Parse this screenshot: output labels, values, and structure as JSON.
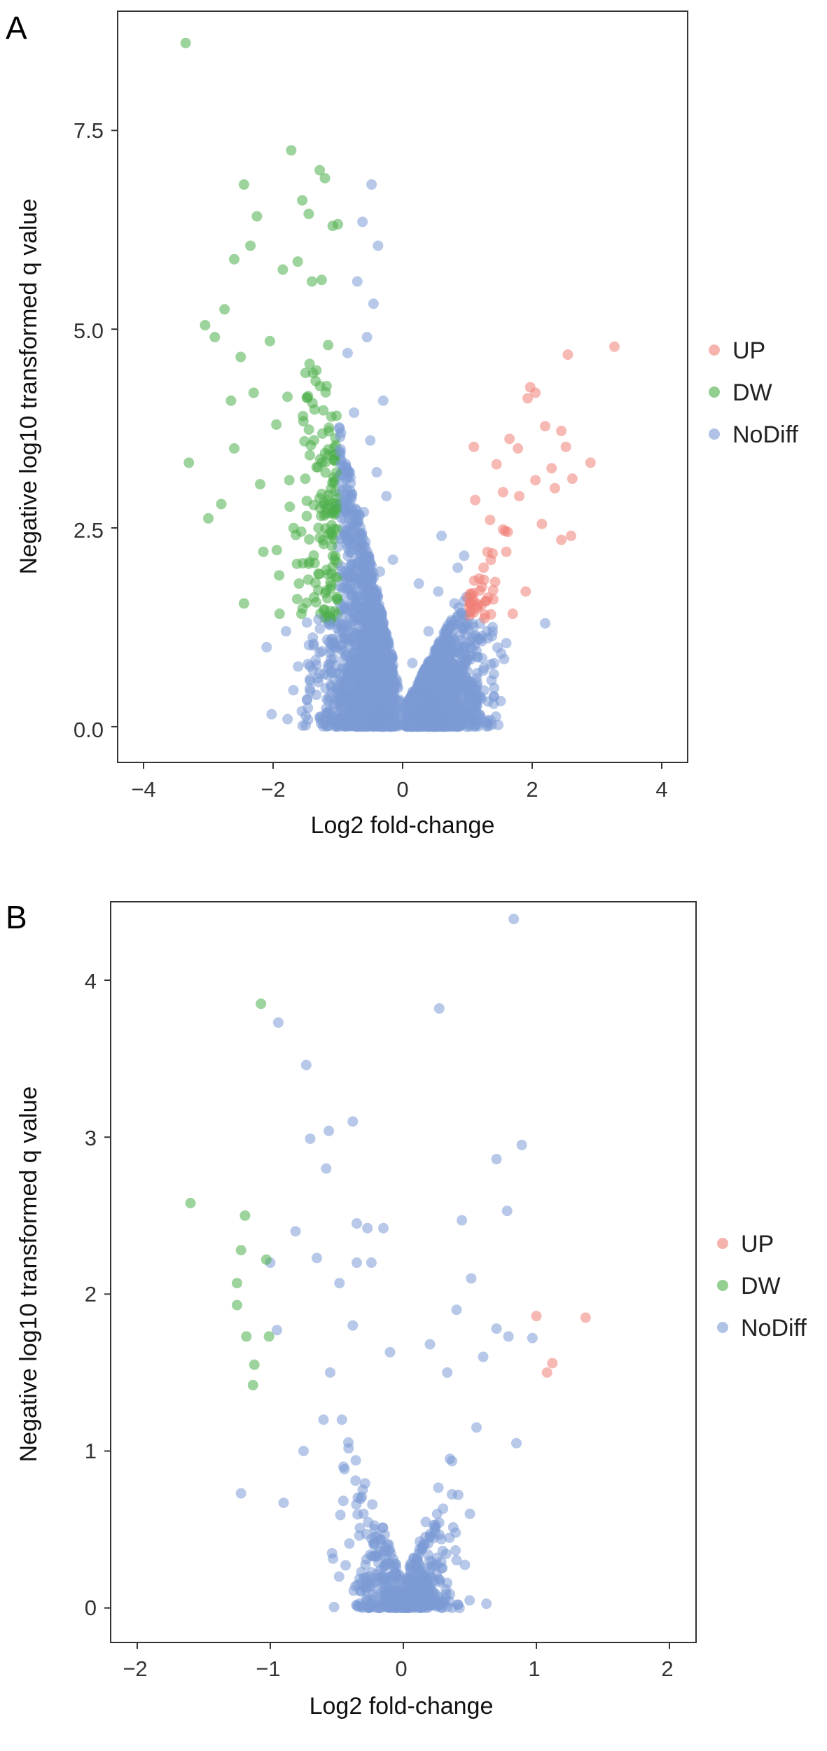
{
  "panels": [
    {
      "letter": "A",
      "xlabel": "Log2 fold-change",
      "ylabel": "Negative log10 transformed q value",
      "xticks": [
        "−4",
        "−2",
        "0",
        "2",
        "4"
      ],
      "yticks": [
        "0.0",
        "2.5",
        "5.0",
        "7.5"
      ],
      "legend": [
        "UP",
        "DW",
        "NoDiff"
      ]
    },
    {
      "letter": "B",
      "xlabel": "Log2 fold-change",
      "ylabel": "Negative log10 transformed q value",
      "xticks": [
        "−2",
        "−1",
        "0",
        "1",
        "2"
      ],
      "yticks": [
        "0",
        "1",
        "2",
        "3",
        "4"
      ],
      "legend": [
        "UP",
        "DW",
        "NoDiff"
      ]
    }
  ],
  "chart_data": [
    {
      "type": "scatter",
      "title": "",
      "xlabel": "Log2 fold-change",
      "ylabel": "Negative log10 transformed q value",
      "xlim": [
        -4.4,
        4.4
      ],
      "ylim": [
        -0.45,
        9.0
      ],
      "xticks": [
        -4,
        -2,
        0,
        2,
        4
      ],
      "yticks": [
        0,
        2.5,
        5.0,
        7.5
      ],
      "grid": false,
      "legend_position": "right",
      "point_opacity": 0.55,
      "series": [
        {
          "name": "UP",
          "color": "#F08077",
          "points": [
            [
              3.27,
              4.78
            ],
            [
              2.55,
              4.68
            ],
            [
              1.97,
              4.27
            ],
            [
              2.05,
              4.2
            ],
            [
              1.93,
              4.13
            ],
            [
              2.2,
              3.78
            ],
            [
              2.45,
              3.72
            ],
            [
              1.65,
              3.62
            ],
            [
              1.1,
              3.52
            ],
            [
              2.9,
              3.32
            ],
            [
              2.52,
              3.52
            ],
            [
              1.78,
              3.5
            ],
            [
              2.62,
              3.12
            ],
            [
              2.3,
              3.25
            ],
            [
              1.45,
              3.3
            ],
            [
              2.35,
              3.0
            ],
            [
              2.6,
              2.4
            ],
            [
              2.45,
              2.35
            ],
            [
              1.12,
              2.85
            ],
            [
              1.35,
              2.6
            ],
            [
              1.8,
              2.9
            ],
            [
              1.6,
              2.2
            ],
            [
              1.25,
              2.0
            ],
            [
              1.4,
              1.6
            ],
            [
              1.9,
              1.7
            ],
            [
              2.15,
              2.55
            ],
            [
              1.55,
              2.95
            ],
            [
              2.05,
              3.1
            ],
            [
              1.05,
              1.45
            ],
            [
              1.7,
              1.42
            ]
          ]
        },
        {
          "name": "DW",
          "color": "#4DAF4A",
          "points": [
            [
              -3.35,
              8.6
            ],
            [
              -1.72,
              7.25
            ],
            [
              -2.45,
              6.82
            ],
            [
              -1.2,
              6.9
            ],
            [
              -1.55,
              6.62
            ],
            [
              -1.28,
              7.0
            ],
            [
              -2.25,
              6.42
            ],
            [
              -1.45,
              6.45
            ],
            [
              -1.0,
              6.32
            ],
            [
              -1.08,
              6.3
            ],
            [
              -2.35,
              6.05
            ],
            [
              -1.62,
              5.85
            ],
            [
              -2.6,
              5.88
            ],
            [
              -1.85,
              5.75
            ],
            [
              -1.4,
              5.6
            ],
            [
              -2.75,
              5.25
            ],
            [
              -1.25,
              5.62
            ],
            [
              -2.9,
              4.9
            ],
            [
              -3.05,
              5.05
            ],
            [
              -2.05,
              4.85
            ],
            [
              -2.5,
              4.65
            ],
            [
              -3.3,
              3.32
            ],
            [
              -3.0,
              2.62
            ],
            [
              -2.6,
              3.5
            ],
            [
              -2.3,
              4.2
            ],
            [
              -1.5,
              4.45
            ],
            [
              -1.15,
              4.8
            ],
            [
              -1.95,
              3.8
            ],
            [
              -2.8,
              2.8
            ],
            [
              -2.15,
              2.2
            ],
            [
              -1.75,
              3.1
            ],
            [
              -1.3,
              2.5
            ],
            [
              -2.45,
              1.55
            ],
            [
              -1.6,
              1.8
            ],
            [
              -1.05,
              1.45
            ],
            [
              -1.9,
              1.42
            ],
            [
              -2.2,
              3.05
            ],
            [
              -1.1,
              3.9
            ],
            [
              -2.65,
              4.1
            ],
            [
              -1.45,
              2.05
            ]
          ]
        },
        {
          "name": "NoDiff",
          "color": "#7B9BD6",
          "points": [
            [
              -0.48,
              6.82
            ],
            [
              -0.38,
              6.05
            ],
            [
              -0.45,
              5.32
            ],
            [
              -0.62,
              6.35
            ],
            [
              -0.7,
              5.6
            ],
            [
              -0.55,
              4.9
            ],
            [
              -0.85,
              4.7
            ],
            [
              -0.3,
              4.1
            ],
            [
              -0.75,
              3.95
            ],
            [
              -0.5,
              3.6
            ],
            [
              -0.95,
              3.3
            ],
            [
              -0.4,
              3.2
            ],
            [
              -0.25,
              2.9
            ],
            [
              -0.6,
              2.7
            ],
            [
              -0.85,
              2.4
            ],
            [
              -0.15,
              2.1
            ],
            [
              -0.35,
              1.95
            ],
            [
              -0.7,
              1.6
            ],
            [
              -1.3,
              1.35
            ],
            [
              -1.8,
              1.2
            ],
            [
              -2.1,
              1.0
            ],
            [
              -0.9,
              1.1
            ],
            [
              -0.45,
              1.4
            ],
            [
              0.25,
              1.8
            ],
            [
              0.55,
              1.7
            ],
            [
              0.8,
              1.55
            ],
            [
              0.95,
              2.15
            ],
            [
              0.6,
              2.4
            ],
            [
              0.85,
              2.0
            ],
            [
              1.3,
              1.2
            ],
            [
              1.6,
              1.05
            ],
            [
              2.2,
              1.3
            ],
            [
              0.4,
              1.2
            ],
            [
              0.15,
              0.8
            ],
            [
              -0.1,
              0.6
            ]
          ]
        }
      ]
    },
    {
      "type": "scatter",
      "title": "",
      "xlabel": "Log2 fold-change",
      "ylabel": "Negative log10 transformed q value",
      "xlim": [
        -2.2,
        2.2
      ],
      "ylim": [
        -0.22,
        4.5
      ],
      "xticks": [
        -2,
        -1,
        0,
        1,
        2
      ],
      "yticks": [
        0,
        1,
        2,
        3,
        4
      ],
      "grid": false,
      "legend_position": "right",
      "point_opacity": 0.55,
      "series": [
        {
          "name": "UP",
          "color": "#F08077",
          "points": [
            [
              1.0,
              1.86
            ],
            [
              1.37,
              1.85
            ],
            [
              1.12,
              1.56
            ],
            [
              1.08,
              1.5
            ]
          ]
        },
        {
          "name": "DW",
          "color": "#4DAF4A",
          "points": [
            [
              -1.07,
              3.85
            ],
            [
              -1.6,
              2.58
            ],
            [
              -1.19,
              2.5
            ],
            [
              -1.22,
              2.28
            ],
            [
              -1.03,
              2.22
            ],
            [
              -1.25,
              2.07
            ],
            [
              -1.25,
              1.93
            ],
            [
              -1.18,
              1.73
            ],
            [
              -1.01,
              1.73
            ],
            [
              -1.12,
              1.55
            ],
            [
              -1.13,
              1.42
            ]
          ]
        },
        {
          "name": "NoDiff",
          "color": "#7B9BD6",
          "points": [
            [
              0.83,
              4.39
            ],
            [
              0.27,
              3.82
            ],
            [
              -0.94,
              3.73
            ],
            [
              -0.73,
              3.46
            ],
            [
              -0.38,
              3.1
            ],
            [
              -0.56,
              3.04
            ],
            [
              -0.7,
              2.99
            ],
            [
              0.89,
              2.95
            ],
            [
              0.7,
              2.86
            ],
            [
              -0.58,
              2.8
            ],
            [
              0.78,
              2.53
            ],
            [
              0.44,
              2.47
            ],
            [
              -0.35,
              2.45
            ],
            [
              -0.27,
              2.42
            ],
            [
              -0.15,
              2.42
            ],
            [
              -0.81,
              2.4
            ],
            [
              -0.65,
              2.23
            ],
            [
              -0.35,
              2.2
            ],
            [
              -0.24,
              2.2
            ],
            [
              -1.0,
              2.2
            ],
            [
              0.51,
              2.1
            ],
            [
              -0.48,
              2.07
            ],
            [
              0.4,
              1.9
            ],
            [
              0.7,
              1.78
            ],
            [
              0.79,
              1.73
            ],
            [
              0.97,
              1.72
            ],
            [
              -0.95,
              1.77
            ],
            [
              -0.38,
              1.8
            ],
            [
              0.2,
              1.68
            ],
            [
              -0.1,
              1.63
            ],
            [
              0.33,
              1.5
            ],
            [
              -0.55,
              1.5
            ],
            [
              0.6,
              1.6
            ],
            [
              -1.22,
              0.73
            ],
            [
              -0.9,
              0.67
            ],
            [
              -0.75,
              1.0
            ],
            [
              -0.6,
              1.2
            ],
            [
              -0.45,
              0.9
            ],
            [
              -0.3,
              0.6
            ],
            [
              0.35,
              0.95
            ],
            [
              0.55,
              1.15
            ],
            [
              0.85,
              1.05
            ],
            [
              0.5,
              0.6
            ],
            [
              0.2,
              0.45
            ],
            [
              -0.15,
              0.35
            ]
          ]
        }
      ]
    }
  ]
}
